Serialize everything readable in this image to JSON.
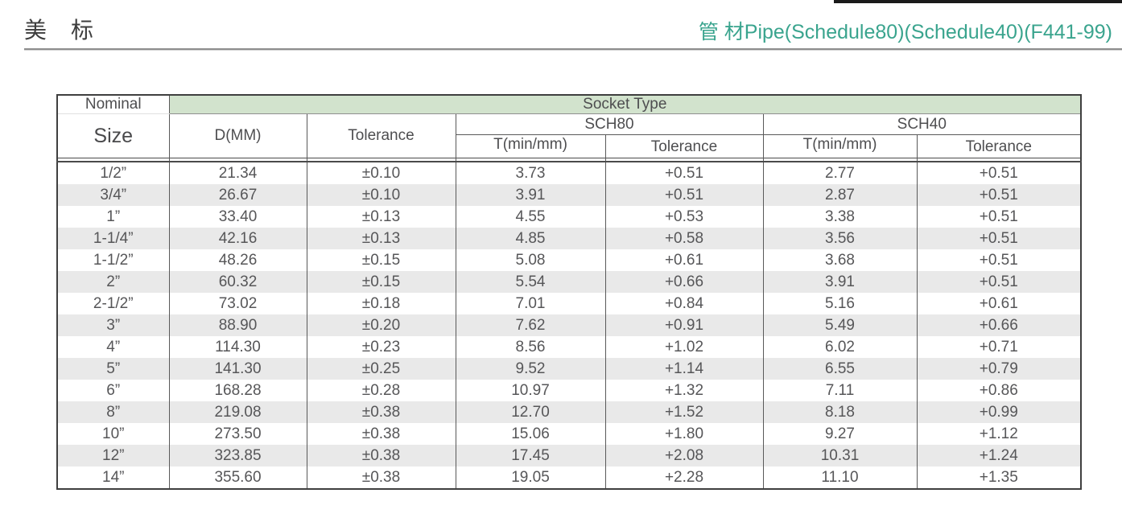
{
  "page": {
    "title_left": "美　标",
    "title_right": "管 材Pipe(Schedule80)(Schedule40)(F441-99)",
    "accent_color": "#3aa48e",
    "band_color": "#d2e3cd",
    "stripe_color": "#e9e9e9"
  },
  "table": {
    "header": {
      "nominal": "Nominal",
      "size": "Size",
      "socket_type": "Socket Type",
      "d_mm": "D(MM)",
      "d_tolerance": "Tolerance",
      "sch80": "SCH80",
      "sch40": "SCH40",
      "sch80_t": "T(min/mm)",
      "sch80_tolerance": "Tolerance",
      "sch40_t": "T(min/mm)",
      "sch40_tolerance": "Tolerance"
    },
    "rows": [
      [
        "1/2”",
        "21.34",
        "±0.10",
        "3.73",
        "+0.51",
        "2.77",
        "+0.51"
      ],
      [
        "3/4”",
        "26.67",
        "±0.10",
        "3.91",
        "+0.51",
        "2.87",
        "+0.51"
      ],
      [
        "1”",
        "33.40",
        "±0.13",
        "4.55",
        "+0.53",
        "3.38",
        "+0.51"
      ],
      [
        "1-1/4”",
        "42.16",
        "±0.13",
        "4.85",
        "+0.58",
        "3.56",
        "+0.51"
      ],
      [
        "1-1/2”",
        "48.26",
        "±0.15",
        "5.08",
        "+0.61",
        "3.68",
        "+0.51"
      ],
      [
        "2”",
        "60.32",
        "±0.15",
        "5.54",
        "+0.66",
        "3.91",
        "+0.51"
      ],
      [
        "2-1/2”",
        "73.02",
        "±0.18",
        "7.01",
        "+0.84",
        "5.16",
        "+0.61"
      ],
      [
        "3”",
        "88.90",
        "±0.20",
        "7.62",
        "+0.91",
        "5.49",
        "+0.66"
      ],
      [
        "4”",
        "114.30",
        "±0.23",
        "8.56",
        "+1.02",
        "6.02",
        "+0.71"
      ],
      [
        "5”",
        "141.30",
        "±0.25",
        "9.52",
        "+1.14",
        "6.55",
        "+0.79"
      ],
      [
        "6”",
        "168.28",
        "±0.28",
        "10.97",
        "+1.32",
        "7.11",
        "+0.86"
      ],
      [
        "8”",
        "219.08",
        "±0.38",
        "12.70",
        "+1.52",
        "8.18",
        "+0.99"
      ],
      [
        "10”",
        "273.50",
        "±0.38",
        "15.06",
        "+1.80",
        "9.27",
        "+1.12"
      ],
      [
        "12”",
        "323.85",
        "±0.38",
        "17.45",
        "+2.08",
        "10.31",
        "+1.24"
      ],
      [
        "14”",
        "355.60",
        "±0.38",
        "19.05",
        "+2.28",
        "11.10",
        "+1.35"
      ]
    ]
  }
}
